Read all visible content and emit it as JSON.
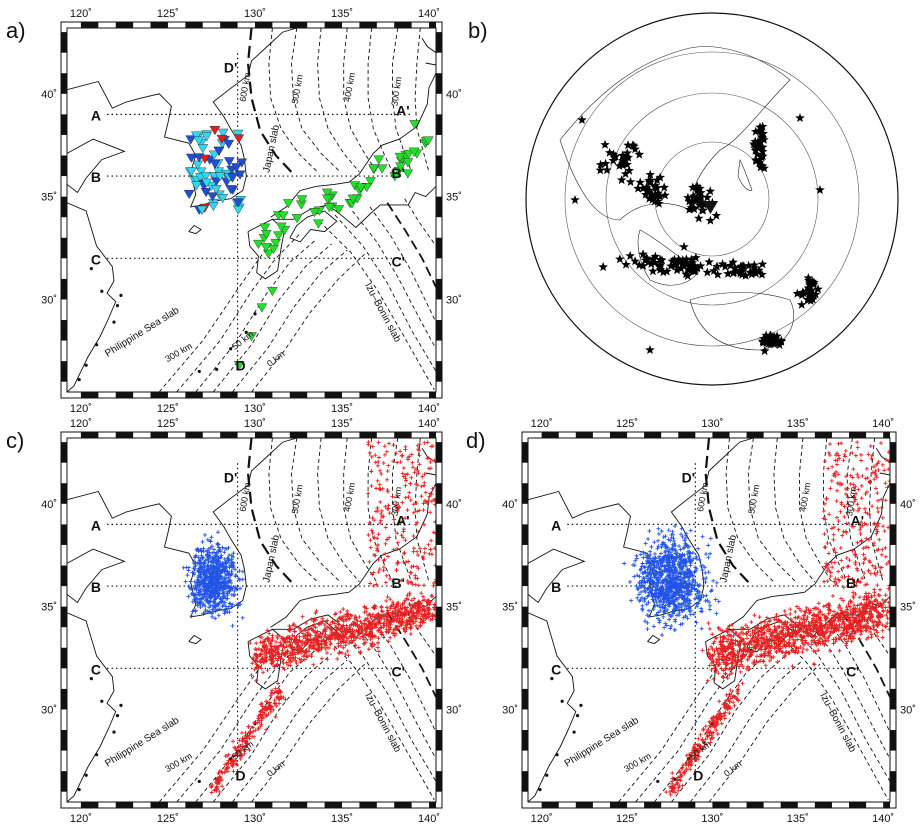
{
  "figure": {
    "panels": [
      {
        "id": "a",
        "label": "a)"
      },
      {
        "id": "b",
        "label": "b)"
      },
      {
        "id": "c",
        "label": "c)"
      },
      {
        "id": "d",
        "label": "d)"
      }
    ],
    "lon_ticks": [
      "120˚",
      "125˚",
      "130˚",
      "135˚",
      "140˚"
    ],
    "lat_ticks": [
      "40˚",
      "35˚",
      "30˚"
    ],
    "profile_labels": {
      "A": "A",
      "A2": "A'",
      "B": "B",
      "B2": "B'",
      "C": "C",
      "C2": "C'",
      "D": "D",
      "D2": "D'"
    },
    "slab_labels": {
      "japan": "Japan slab",
      "philippine": "Philippine Sea slab",
      "izu": "Izu–Bonin slab"
    },
    "depth_labels": {
      "d600": "600 km",
      "d500": "500 km",
      "d400": "400 km",
      "d300": "300 km",
      "d300b": "300 km",
      "d50": "50 km",
      "d0": "0 km"
    },
    "colors": {
      "korea_station_dark": "#1f4fd6",
      "korea_station_light": "#33d6f0",
      "korea_station_red": "#e01f1f",
      "japan_station": "#22e02a",
      "event_korea": "#2255e6",
      "event_japan": "#e62020",
      "event_global": "#000000"
    },
    "map_extent": {
      "lon": [
        119.2,
        140.4
      ],
      "lat": [
        25.5,
        43.2
      ]
    }
  }
}
